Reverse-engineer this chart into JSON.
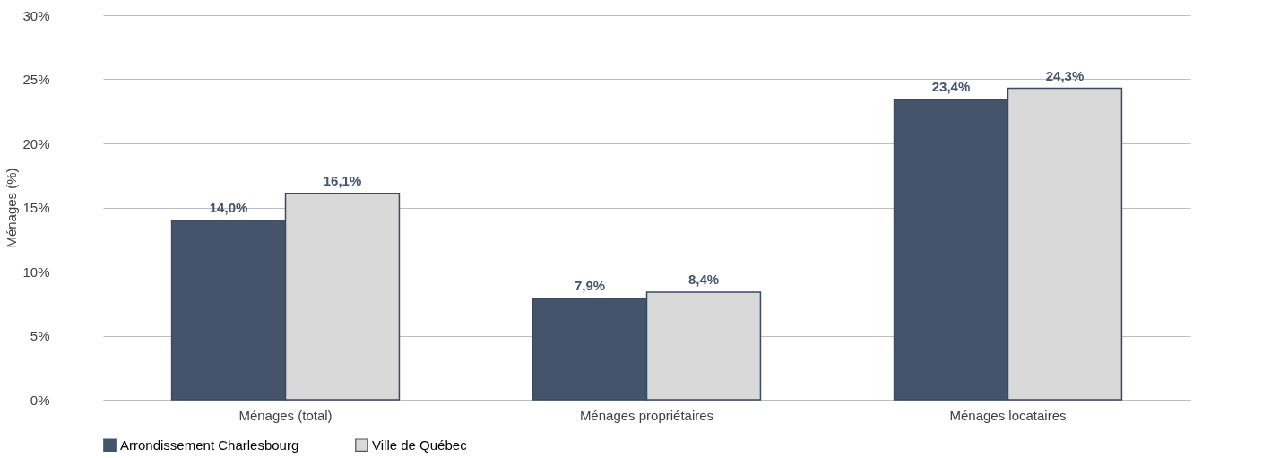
{
  "chart_data": {
    "type": "bar",
    "ylabel": "Ménages (%)",
    "categories": [
      "Ménages (total)",
      "Ménages propriétaires",
      "Ménages locataires"
    ],
    "series": [
      {
        "name": "Arrondissement Charlesbourg",
        "color": "#44546a",
        "values": [
          14.0,
          7.9,
          23.4
        ],
        "value_labels": [
          "14,0%",
          "7,9%",
          "23,4%"
        ]
      },
      {
        "name": "Ville de Québec",
        "color": "#d9d9d9",
        "values": [
          16.1,
          8.4,
          24.3
        ],
        "value_labels": [
          "16,1%",
          "8,4%",
          "24,3%"
        ]
      }
    ],
    "ylim": [
      0,
      30
    ],
    "yticks": [
      {
        "value": 0,
        "label": "0%"
      },
      {
        "value": 5,
        "label": "5%"
      },
      {
        "value": 10,
        "label": "10%"
      },
      {
        "value": 15,
        "label": "15%"
      },
      {
        "value": 20,
        "label": "20%"
      },
      {
        "value": 25,
        "label": "25%"
      },
      {
        "value": 30,
        "label": "30%"
      }
    ],
    "grid": "y",
    "legend": "bottom"
  }
}
